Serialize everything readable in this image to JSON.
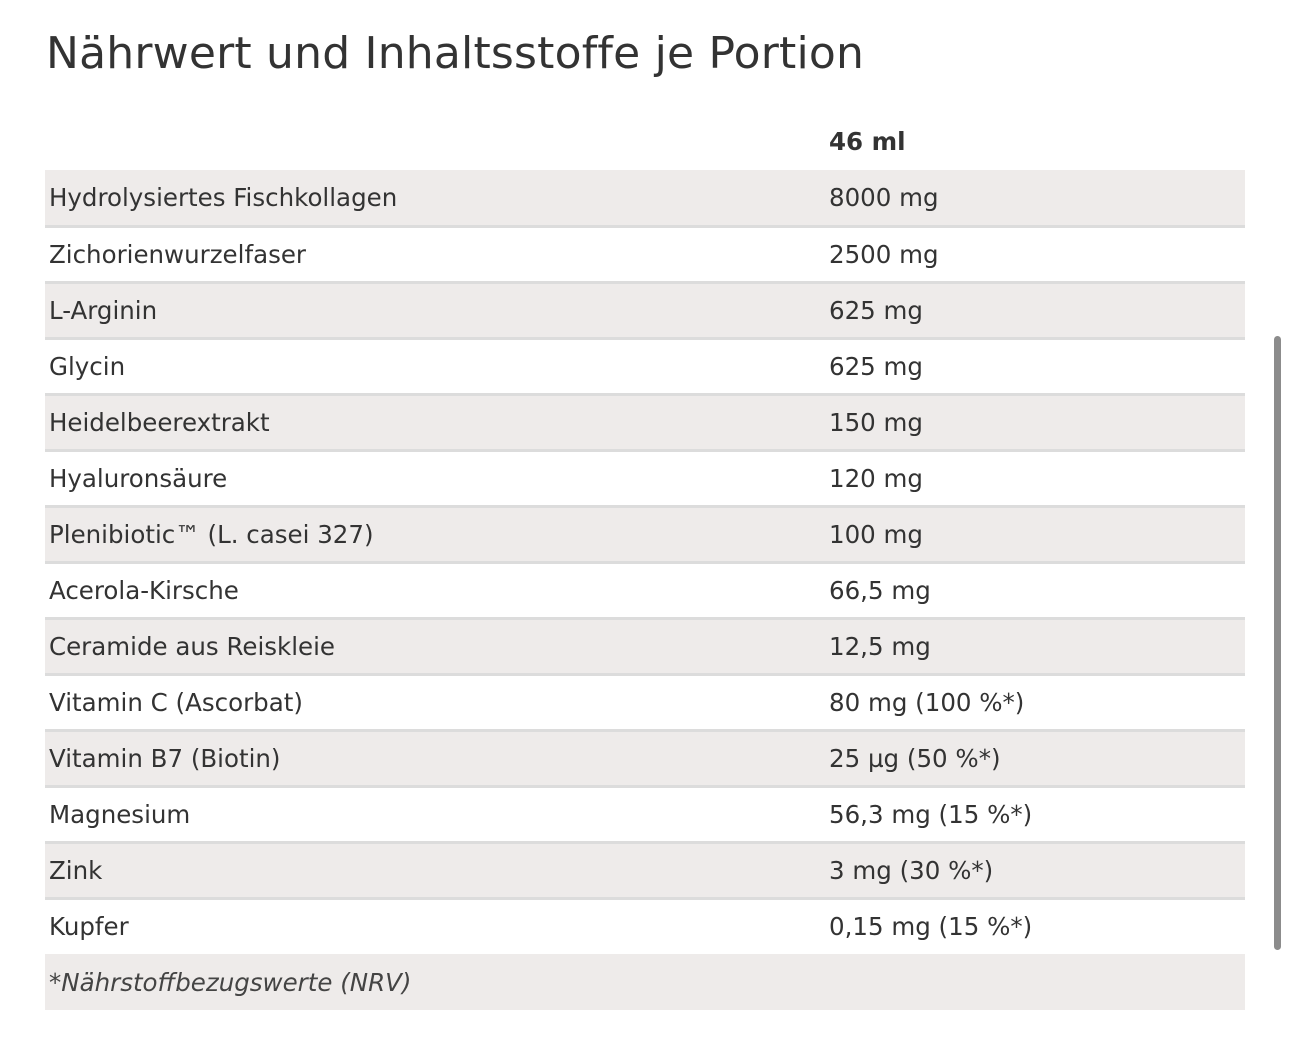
{
  "title": "Nährwert und Inhaltsstoffe je Portion",
  "table": {
    "header": {
      "name": "",
      "portion": "46 ml"
    },
    "rows": [
      {
        "name": "Hydrolysiertes Fischkollagen",
        "value": "8000 mg"
      },
      {
        "name": "Zichorienwurzelfaser",
        "value": "2500 mg"
      },
      {
        "name": "L-Arginin",
        "value": "625 mg"
      },
      {
        "name": "Glycin",
        "value": "625 mg"
      },
      {
        "name": "Heidelbeerextrakt",
        "value": "150 mg"
      },
      {
        "name": "Hyaluronsäure",
        "value": "120 mg"
      },
      {
        "name": "Plenibiotic™ (L. casei 327)",
        "value": "100 mg"
      },
      {
        "name": "Acerola-Kirsche",
        "value": "66,5 mg"
      },
      {
        "name": "Ceramide aus Reiskleie",
        "value": "12,5 mg"
      },
      {
        "name": "Vitamin C (Ascorbat)",
        "value": "80 mg (100 %*)"
      },
      {
        "name": "Vitamin B7 (Biotin)",
        "value": "25 µg (50 %*)"
      },
      {
        "name": "Magnesium",
        "value": "56,3 mg (15 %*)"
      },
      {
        "name": "Zink",
        "value": "3 mg (30 %*)"
      },
      {
        "name": "Kupfer",
        "value": "0,15 mg (15 %*)"
      }
    ],
    "footnote": "*Nährstoffbezugswerte (NRV)"
  },
  "colors": {
    "text": "#333333",
    "row_stripe": "#eeebea",
    "row_divider": "#dcdcdc",
    "scrollbar": "#8c8c8c"
  }
}
